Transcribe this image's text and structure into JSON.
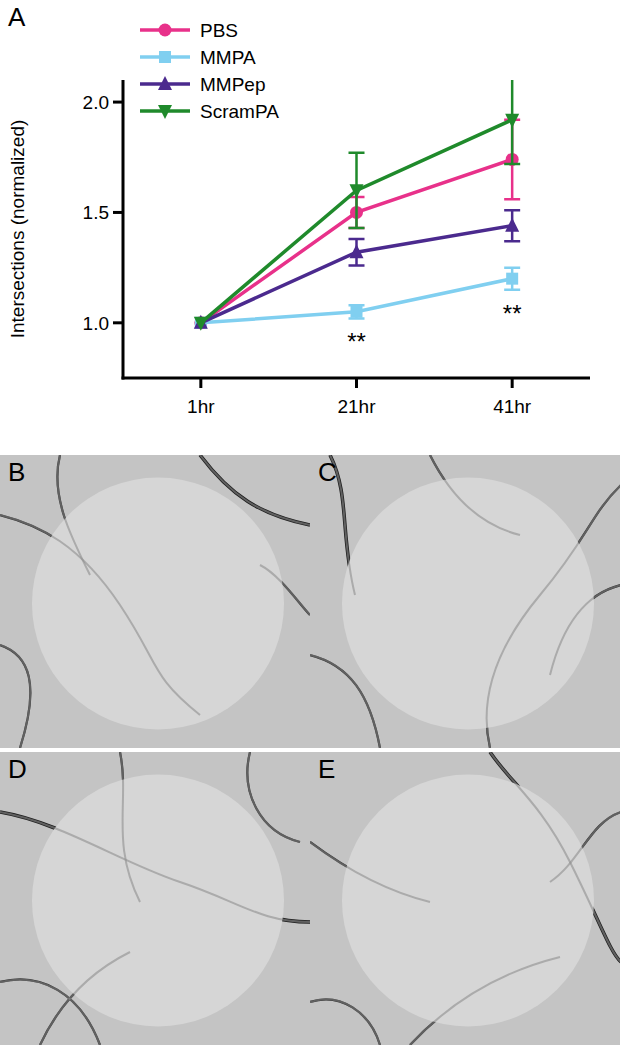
{
  "panel_labels": [
    "A",
    "B",
    "C",
    "D",
    "E"
  ],
  "chart_data": {
    "type": "line",
    "y_label": "Intersections (normalized)",
    "categories": [
      "1hr",
      "21hr",
      "41hr"
    ],
    "ylim": [
      0.75,
      2.1
    ],
    "yticks": [
      {
        "value": 1,
        "label": "1.0"
      },
      1.5,
      {
        "value": 2,
        "label": "2.0"
      }
    ],
    "legend": "upper left",
    "grid": false,
    "series": [
      {
        "name": "PBS",
        "color": "#e8318a",
        "marker": "circle",
        "values": [
          1.0,
          1.5,
          1.74
        ],
        "errors": [
          0,
          0.07,
          0.18
        ]
      },
      {
        "name": "MMPA",
        "color": "#80cff0",
        "marker": "square",
        "values": [
          1.0,
          1.05,
          1.2
        ],
        "errors": [
          0,
          0.03,
          0.05
        ]
      },
      {
        "name": "MMPep",
        "color": "#4b2a8e",
        "marker": "triangle",
        "values": [
          1.0,
          1.32,
          1.44
        ],
        "errors": [
          0,
          0.06,
          0.07
        ]
      },
      {
        "name": "ScramPA",
        "color": "#1f8a2b",
        "marker": "triangle-down",
        "values": [
          1.0,
          1.6,
          1.92
        ],
        "errors": [
          0,
          0.17,
          0.2
        ]
      }
    ],
    "annotations": [
      {
        "category": "21hr",
        "series": "MMPA",
        "label": "**"
      },
      {
        "category": "41hr",
        "series": "MMPA",
        "label": "**"
      }
    ]
  }
}
